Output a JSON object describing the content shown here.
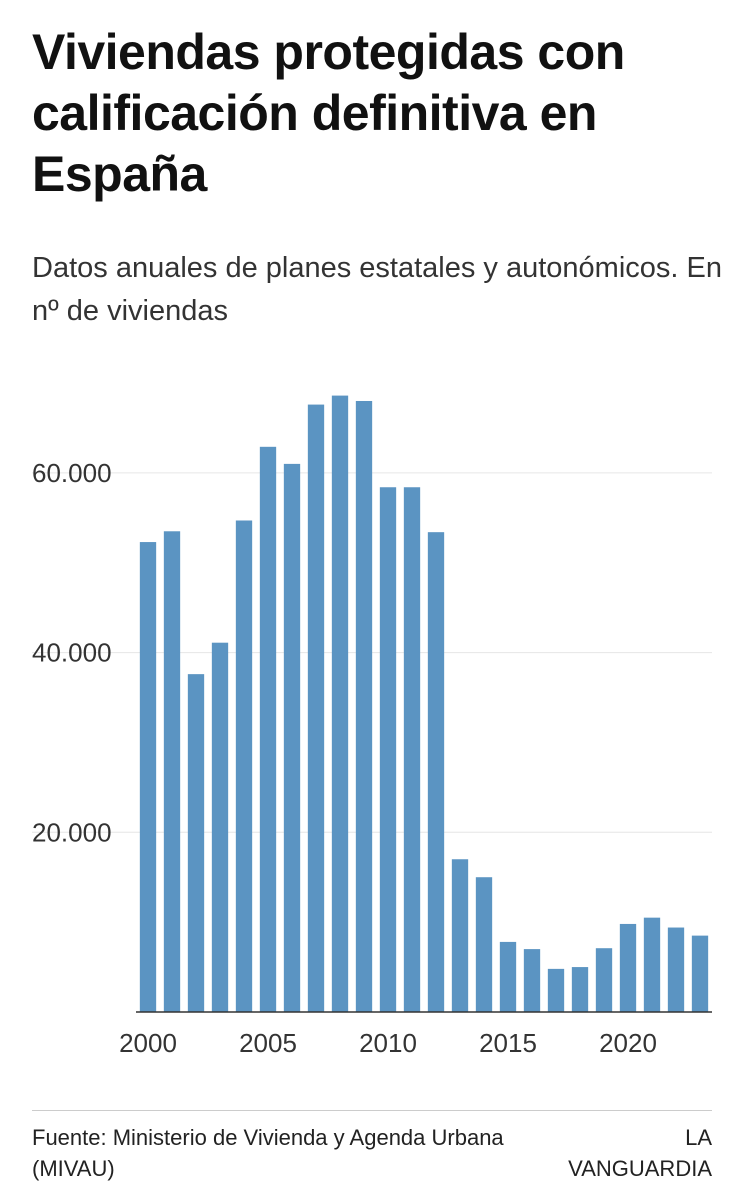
{
  "header": {
    "title": "Viviendas protegidas con calificación definitiva en España",
    "subtitle": "Datos anuales de planes estatales y autonómicos. En nº de viviendas"
  },
  "footer": {
    "source": "Fuente: Ministerio de Vivienda y Agenda Urbana (MIVAU)",
    "credit": "LA VANGUARDIA"
  },
  "colors": {
    "bar": "#5b94c2",
    "grid": "#e6e6e6",
    "axis_line": "#333333",
    "text": "#333333"
  },
  "chart_data": {
    "type": "bar",
    "title": "Viviendas protegidas con calificación definitiva en España",
    "subtitle": "Datos anuales de planes estatales y autonómicos. En nº de viviendas",
    "xlabel": "",
    "ylabel": "",
    "ylim": [
      0,
      69000
    ],
    "grid": true,
    "yticks": [
      {
        "value": 20000,
        "label": "20.000"
      },
      {
        "value": 40000,
        "label": "40.000"
      },
      {
        "value": 60000,
        "label": "60.000"
      }
    ],
    "xticks": [
      {
        "year": 2000,
        "label": "2000"
      },
      {
        "year": 2005,
        "label": "2005"
      },
      {
        "year": 2010,
        "label": "2010"
      },
      {
        "year": 2015,
        "label": "2015"
      },
      {
        "year": 2020,
        "label": "2020"
      }
    ],
    "categories": [
      2000,
      2001,
      2002,
      2003,
      2004,
      2005,
      2006,
      2007,
      2008,
      2009,
      2010,
      2011,
      2012,
      2013,
      2014,
      2015,
      2016,
      2017,
      2018,
      2019,
      2020,
      2021,
      2022,
      2023
    ],
    "values": [
      52300,
      53500,
      37600,
      41100,
      54700,
      62900,
      61000,
      67600,
      68600,
      68000,
      58400,
      58400,
      53400,
      17000,
      15000,
      7800,
      7000,
      4800,
      5000,
      7100,
      9800,
      10500,
      9400,
      8500
    ]
  }
}
